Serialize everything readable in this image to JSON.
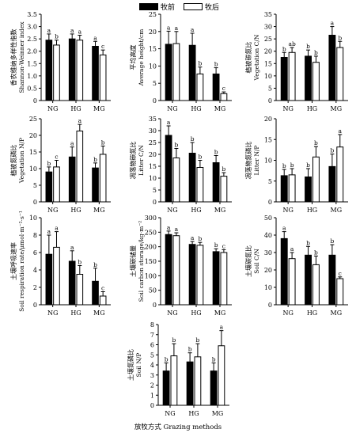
{
  "legend": {
    "before": "牧前",
    "after": "牧后"
  },
  "x_axis_title": "放牧方式 Grazing methods",
  "chart_data": [
    {
      "type": "bar",
      "categories": [
        "NG",
        "HG",
        "MG"
      ],
      "ylabel_zh": "香农维纳多样性指数",
      "ylabel_en": "Shannon-Weinner index",
      "ylim": [
        0,
        3.5
      ],
      "yticks": [
        "0",
        "0.5",
        "1.0",
        "1.5",
        "2.0",
        "2.5",
        "3.0",
        "3.5"
      ],
      "series": [
        {
          "name": "牧前",
          "values": [
            2.45,
            2.5,
            2.2
          ],
          "errors": [
            0.25,
            0.2,
            0.2
          ],
          "letters": [
            "a",
            "a",
            "a"
          ]
        },
        {
          "name": "牧后",
          "values": [
            2.25,
            2.45,
            1.85
          ],
          "errors": [
            0.2,
            0.2,
            0.2
          ],
          "letters": [
            "b",
            "a",
            "c"
          ]
        }
      ]
    },
    {
      "type": "bar",
      "categories": [
        "NG",
        "HG",
        "MG"
      ],
      "ylabel_zh": "平均高度",
      "ylabel_en": "Average height/cm",
      "ylim": [
        0,
        25
      ],
      "yticks": [
        "0",
        "5",
        "10",
        "15",
        "20",
        "25"
      ],
      "series": [
        {
          "name": "牧前",
          "values": [
            16.3,
            16.0,
            7.7
          ],
          "errors": [
            3.8,
            3.5,
            1.8
          ],
          "letters": [
            "a",
            "a",
            "b"
          ]
        },
        {
          "name": "牧后",
          "values": [
            16.5,
            7.7,
            2.0
          ],
          "errors": [
            3.5,
            2.0,
            0.5
          ],
          "letters": [
            "a",
            "b",
            "c"
          ]
        }
      ]
    },
    {
      "type": "bar",
      "categories": [
        "NG",
        "HG",
        "MG"
      ],
      "ylabel_zh": "植被碳氮比",
      "ylabel_en": "Vegetation C/N",
      "ylim": [
        0,
        35
      ],
      "yticks": [
        "0",
        "5",
        "10",
        "15",
        "20",
        "25",
        "30",
        "35"
      ],
      "series": [
        {
          "name": "牧前",
          "values": [
            17.5,
            18.0,
            26.5
          ],
          "errors": [
            2.0,
            2.5,
            3.5
          ],
          "letters": [
            "b",
            "b",
            "a"
          ]
        },
        {
          "name": "牧后",
          "values": [
            19.5,
            15.5,
            21.5
          ],
          "errors": [
            2.0,
            2.5,
            2.5
          ],
          "letters": [
            "ab",
            "b",
            "b"
          ]
        }
      ]
    },
    {
      "type": "bar",
      "categories": [
        "NG",
        "HG",
        "MG"
      ],
      "ylabel_zh": "植被氮磷比",
      "ylabel_en": "Vegetation N/P",
      "ylim": [
        0,
        25
      ],
      "yticks": [
        "0",
        "5",
        "10",
        "15",
        "20",
        "25"
      ],
      "series": [
        {
          "name": "牧前",
          "values": [
            9.0,
            13.5,
            10.2
          ],
          "errors": [
            1.5,
            3.0,
            1.5
          ],
          "letters": [
            "b",
            "a",
            "b"
          ]
        },
        {
          "name": "牧后",
          "values": [
            10.5,
            21.3,
            14.3
          ],
          "errors": [
            2.0,
            2.0,
            2.5
          ],
          "letters": [
            "c",
            "a",
            "b"
          ]
        }
      ]
    },
    {
      "type": "bar",
      "categories": [
        "NG",
        "HG",
        "MG"
      ],
      "ylabel_zh": "凋落物碳氮比",
      "ylabel_en": "Litter C/N",
      "ylim": [
        0,
        35
      ],
      "yticks": [
        "0",
        "5",
        "10",
        "15",
        "20",
        "25",
        "30",
        "35"
      ],
      "series": [
        {
          "name": "牧前",
          "values": [
            28.0,
            20.5,
            16.5
          ],
          "errors": [
            4.0,
            4.5,
            3.0
          ],
          "letters": [
            "a",
            "b",
            "b"
          ]
        },
        {
          "name": "牧后",
          "values": [
            18.5,
            14.5,
            10.8
          ],
          "errors": [
            4.0,
            3.0,
            1.5
          ],
          "letters": [
            "b",
            "b",
            "b"
          ]
        }
      ]
    },
    {
      "type": "bar",
      "categories": [
        "NG",
        "HG",
        "MG"
      ],
      "ylabel_zh": "凋落物氮磷比",
      "ylabel_en": "Litter N/P",
      "ylim": [
        0,
        20
      ],
      "yticks": [
        "0",
        "5",
        "10",
        "15",
        "20"
      ],
      "series": [
        {
          "name": "牧前",
          "values": [
            6.3,
            6.0,
            8.5
          ],
          "errors": [
            1.5,
            2.0,
            3.0
          ],
          "letters": [
            "b",
            "b",
            "b"
          ]
        },
        {
          "name": "牧后",
          "values": [
            6.5,
            10.8,
            13.2
          ],
          "errors": [
            1.5,
            2.5,
            3.0
          ],
          "letters": [
            "b",
            "b",
            "a"
          ]
        }
      ]
    },
    {
      "type": "bar",
      "categories": [
        "NG",
        "HG",
        "MG"
      ],
      "ylabel_zh": "土壤呼吸速率",
      "ylabel_en": "Soil respiration rate/μmol·m⁻²·s⁻¹",
      "ylim": [
        0,
        10
      ],
      "yticks": [
        "0",
        "2",
        "4",
        "6",
        "8",
        "10"
      ],
      "series": [
        {
          "name": "牧前",
          "values": [
            5.8,
            5.0,
            2.7
          ],
          "errors": [
            2.2,
            1.2,
            1.5
          ],
          "letters": [
            "a",
            "a",
            "b"
          ]
        },
        {
          "name": "牧后",
          "values": [
            6.6,
            3.5,
            1.0
          ],
          "errors": [
            1.8,
            1.0,
            0.5
          ],
          "letters": [
            "a",
            "b",
            "c"
          ]
        }
      ]
    },
    {
      "type": "bar",
      "categories": [
        "NG",
        "HG",
        "MG"
      ],
      "ylabel_zh": "土壤碳储量",
      "ylabel_en": "Soil carbon storage/kg·m⁻²",
      "ylim": [
        0,
        300
      ],
      "yticks": [
        "0",
        "50",
        "100",
        "150",
        "200",
        "250",
        "300"
      ],
      "series": [
        {
          "name": "牧前",
          "values": [
            242,
            208,
            183
          ],
          "errors": [
            12,
            10,
            10
          ],
          "letters": [
            "a",
            "a",
            "b"
          ]
        },
        {
          "name": "牧后",
          "values": [
            238,
            205,
            180
          ],
          "errors": [
            10,
            10,
            10
          ],
          "letters": [
            "a",
            "b",
            "c"
          ]
        }
      ]
    },
    {
      "type": "bar",
      "categories": [
        "NG",
        "HG",
        "MG"
      ],
      "ylabel_zh": "土壤碳氮比",
      "ylabel_en": "Soil C/N",
      "ylim": [
        0,
        50
      ],
      "yticks": [
        "0",
        "10",
        "20",
        "30",
        "40",
        "50"
      ],
      "series": [
        {
          "name": "牧前",
          "values": [
            38.0,
            28.5,
            28.5
          ],
          "errors": [
            4.0,
            5.0,
            6.0
          ],
          "letters": [
            "a",
            "b",
            "b"
          ]
        },
        {
          "name": "牧后",
          "values": [
            26.5,
            23.0,
            15.0
          ],
          "errors": [
            3.5,
            5.0,
            1.0
          ],
          "letters": [
            "a",
            "b",
            "c"
          ]
        }
      ]
    },
    {
      "type": "bar",
      "categories": [
        "NG",
        "HG",
        "MG"
      ],
      "ylabel_zh": "土壤氮磷比",
      "ylabel_en": "Soil N/P",
      "ylim": [
        0,
        8
      ],
      "yticks": [
        "0",
        "1",
        "2",
        "3",
        "4",
        "5",
        "6",
        "7",
        "8"
      ],
      "series": [
        {
          "name": "牧前",
          "values": [
            3.4,
            4.3,
            3.4
          ],
          "errors": [
            0.8,
            0.9,
            0.8
          ],
          "letters": [
            "b",
            "b",
            "b"
          ]
        },
        {
          "name": "牧后",
          "values": [
            4.9,
            4.8,
            5.9
          ],
          "errors": [
            1.2,
            1.3,
            1.5
          ],
          "letters": [
            "b",
            "b",
            "a"
          ]
        }
      ]
    }
  ]
}
